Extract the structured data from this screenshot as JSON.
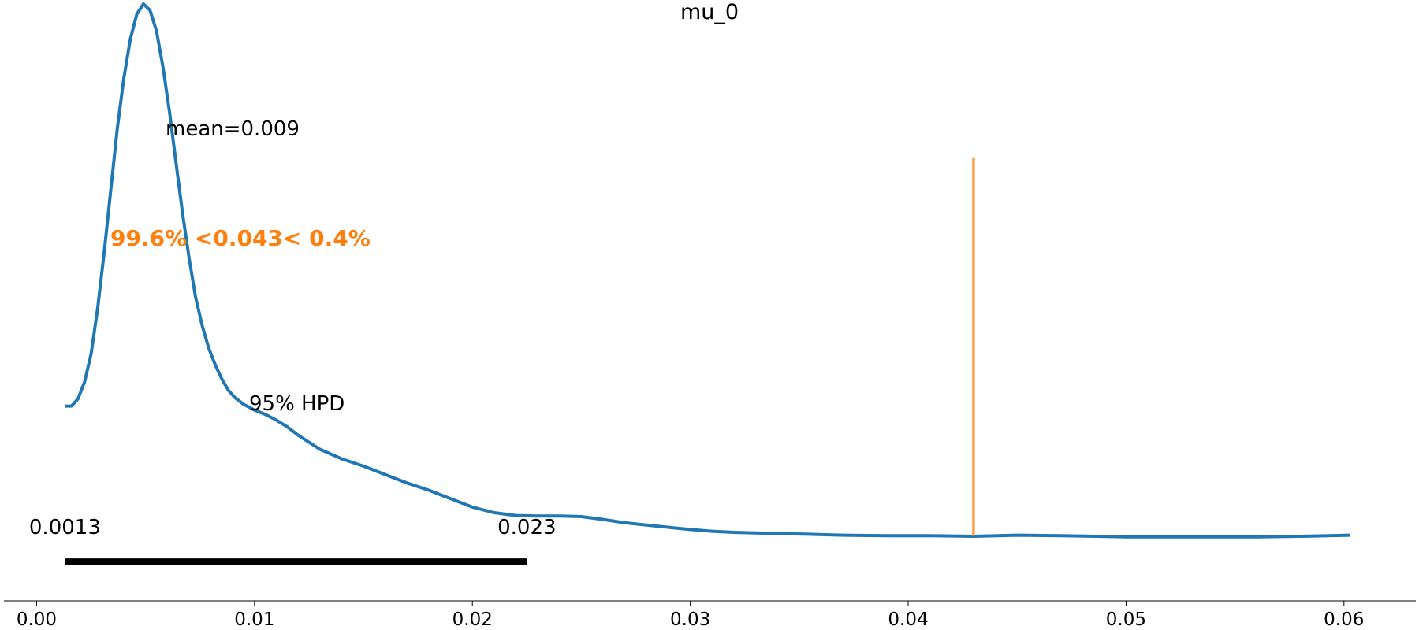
{
  "chart_data": {
    "type": "line",
    "title": "mu_0",
    "xlabel": "",
    "ylabel": "",
    "xlim": [
      -0.0015,
      0.0633
    ],
    "ylim": [
      -0.07,
      1.0
    ],
    "x_ticks": [
      0.0,
      0.01,
      0.02,
      0.03,
      0.04,
      0.05,
      0.06
    ],
    "x_tick_labels": [
      "0.00",
      "0.01",
      "0.02",
      "0.03",
      "0.04",
      "0.05",
      "0.06"
    ],
    "y_axis_visible": false,
    "grid": false,
    "series": [
      {
        "line_color": "#1f77b4",
        "x": [
          0.0013,
          0.0016,
          0.0019,
          0.0022,
          0.0025,
          0.0028,
          0.0031,
          0.0034,
          0.0037,
          0.004,
          0.0043,
          0.0046,
          0.0049,
          0.0052,
          0.0055,
          0.0058,
          0.0061,
          0.0064,
          0.0067,
          0.007,
          0.0073,
          0.0076,
          0.0079,
          0.0082,
          0.0085,
          0.0088,
          0.0091,
          0.0095,
          0.01,
          0.0105,
          0.011,
          0.0115,
          0.012,
          0.013,
          0.014,
          0.015,
          0.016,
          0.017,
          0.018,
          0.019,
          0.02,
          0.021,
          0.022,
          0.023,
          0.024,
          0.025,
          0.026,
          0.027,
          0.028,
          0.029,
          0.03,
          0.031,
          0.032,
          0.033,
          0.035,
          0.037,
          0.039,
          0.041,
          0.043,
          0.045,
          0.047,
          0.05,
          0.053,
          0.056,
          0.058,
          0.0603
        ],
        "y": [
          0.277,
          0.277,
          0.29,
          0.32,
          0.37,
          0.45,
          0.55,
          0.66,
          0.77,
          0.86,
          0.93,
          0.975,
          0.993,
          0.982,
          0.945,
          0.88,
          0.8,
          0.71,
          0.62,
          0.54,
          0.47,
          0.42,
          0.38,
          0.35,
          0.325,
          0.305,
          0.292,
          0.28,
          0.27,
          0.262,
          0.252,
          0.24,
          0.225,
          0.2,
          0.183,
          0.17,
          0.155,
          0.14,
          0.127,
          0.112,
          0.097,
          0.087,
          0.082,
          0.081,
          0.081,
          0.08,
          0.075,
          0.069,
          0.065,
          0.061,
          0.057,
          0.054,
          0.052,
          0.051,
          0.049,
          0.047,
          0.046,
          0.046,
          0.045,
          0.047,
          0.046,
          0.044,
          0.044,
          0.044,
          0.045,
          0.047
        ]
      }
    ],
    "reference_line": {
      "x": 0.043,
      "y_top": 0.72,
      "color": "#ff7f0e"
    },
    "hpd_interval": {
      "x": [
        0.0013,
        0.0225
      ],
      "low_label": "0.0013",
      "high_label": "0.023",
      "color": "#000000"
    },
    "annotations": {
      "mean": "mean=0.009",
      "reference": "99.6% <0.043< 0.4%",
      "hpd": "95% HPD"
    }
  }
}
